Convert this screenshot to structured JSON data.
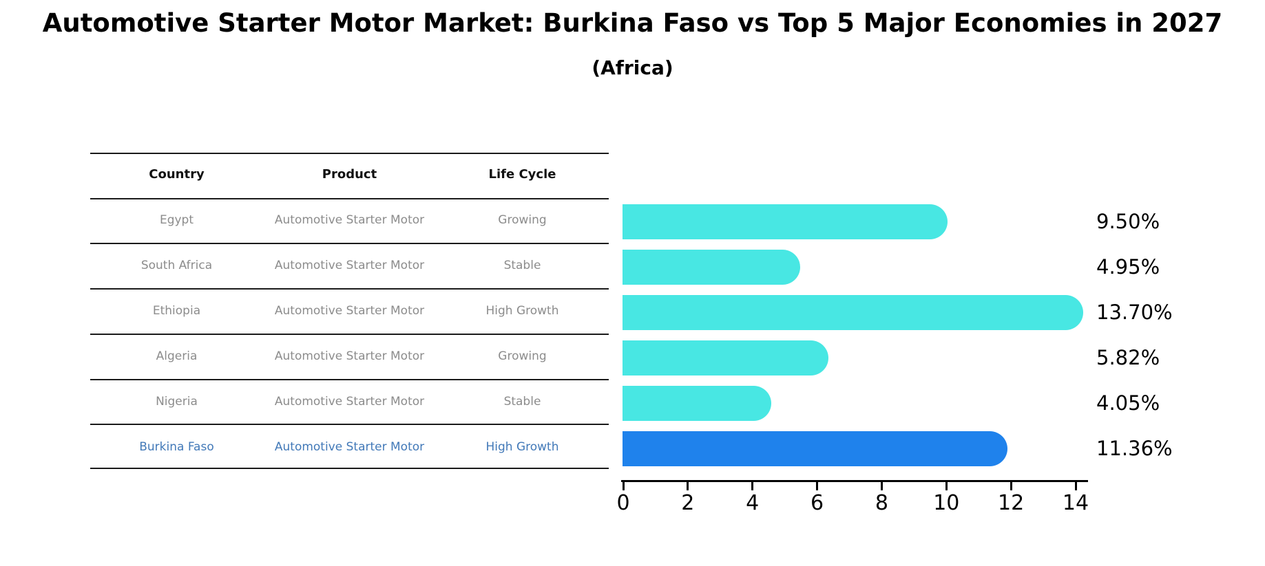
{
  "title": "Automotive Starter Motor Market: Burkina Faso vs Top 5 Major Economies in 2027",
  "subtitle": "(Africa)",
  "table": {
    "headers": {
      "country": "Country",
      "product": "Product",
      "life_cycle": "Life Cycle"
    },
    "rows": [
      {
        "country": "Egypt",
        "product": "Automotive Starter Motor",
        "life_cycle": "Growing",
        "highlighted": false
      },
      {
        "country": "South Africa",
        "product": "Automotive Starter Motor",
        "life_cycle": "Stable",
        "highlighted": false
      },
      {
        "country": "Ethiopia",
        "product": "Automotive Starter Motor",
        "life_cycle": "High Growth",
        "highlighted": false
      },
      {
        "country": "Algeria",
        "product": "Automotive Starter Motor",
        "life_cycle": "Growing",
        "highlighted": false
      },
      {
        "country": "Nigeria",
        "product": "Automotive Starter Motor",
        "life_cycle": "Stable",
        "highlighted": false
      },
      {
        "country": "Burkina Faso",
        "product": "Automotive Starter Motor",
        "life_cycle": "High Growth",
        "highlighted": true
      }
    ]
  },
  "chart_data": {
    "type": "bar",
    "orientation": "horizontal",
    "categories": [
      "Egypt",
      "South Africa",
      "Ethiopia",
      "Algeria",
      "Nigeria",
      "Burkina Faso"
    ],
    "values": [
      9.5,
      4.95,
      13.7,
      5.82,
      4.05,
      11.36
    ],
    "labels": [
      "9.50%",
      "4.95%",
      "13.70%",
      "5.82%",
      "4.05%",
      "11.36%"
    ],
    "title": "Automotive Starter Motor Market: Burkina Faso vs Top 5 Major Economies in 2027 (Africa)",
    "xlabel": "",
    "ylabel": "",
    "xlim": [
      0,
      14
    ],
    "x_ticks": [
      0,
      2,
      4,
      6,
      8,
      10,
      12,
      14
    ],
    "grid": false,
    "legend": false,
    "bar_color": "#48e7e3",
    "highlight_color": "#1f82ec",
    "highlight_index": 5
  },
  "colors": {
    "highlight_text": "#4279b8",
    "row_text": "#8c8c8c",
    "header_text": "#111111",
    "axis": "#000000"
  }
}
